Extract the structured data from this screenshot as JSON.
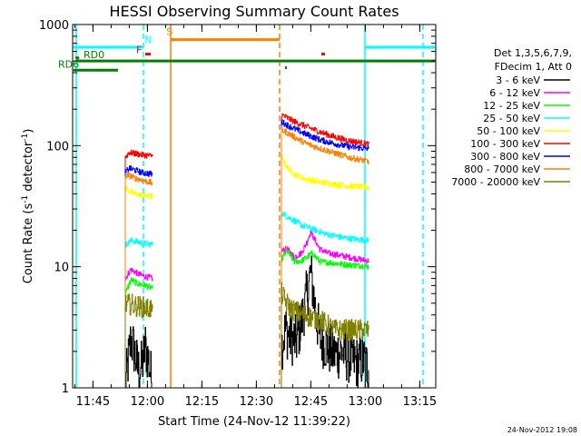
{
  "chart_data": {
    "type": "line",
    "title": "HESSI Observing Summary Count Rates",
    "xlabel": "Start Time (24-Nov-12 11:39:22)",
    "ylabel": "Count Rate (s",
    "ylabel_sup1": "-1",
    "ylabel_mid": " detector",
    "ylabel_sup2": "-1",
    "ylabel_end": ")",
    "x_unit": "minutes since 11:39:22",
    "xlim": [
      0,
      100
    ],
    "ylim": [
      1,
      1000
    ],
    "y_scale": "log",
    "x_ticks": [
      {
        "label": "11:45",
        "min": 5.6
      },
      {
        "label": "12:00",
        "min": 20.6
      },
      {
        "label": "12:15",
        "min": 35.6
      },
      {
        "label": "12:30",
        "min": 50.6
      },
      {
        "label": "12:45",
        "min": 65.6
      },
      {
        "label": "13:00",
        "min": 80.6
      },
      {
        "label": "13:15",
        "min": 95.6
      }
    ],
    "y_ticks": [
      {
        "label": "1",
        "v": 1
      },
      {
        "label": "10",
        "v": 10
      },
      {
        "label": "100",
        "v": 100
      },
      {
        "label": "1000",
        "v": 1000
      }
    ],
    "legend_header": [
      "Det 1,3,5,6,7,9,",
      "FDecim 1, Att 0"
    ],
    "series": [
      {
        "name": "3 - 6 keV",
        "color": "#000000",
        "seg1": [
          [
            14.5,
            1.0
          ],
          [
            15.2,
            1.6
          ],
          [
            16.0,
            2.5
          ],
          [
            17.0,
            2.0
          ],
          [
            18.0,
            1.4
          ],
          [
            19.0,
            1.5
          ],
          [
            20.0,
            2.2
          ],
          [
            21.0,
            1.6
          ],
          [
            22.0,
            1.0
          ]
        ],
        "seg2": [
          [
            57.5,
            2.2
          ],
          [
            58.5,
            3.0
          ],
          [
            60.0,
            2.6
          ],
          [
            61.5,
            2.4
          ],
          [
            63.0,
            3.5
          ],
          [
            64.5,
            6.0
          ],
          [
            65.5,
            9.0
          ],
          [
            66.0,
            7.0
          ],
          [
            67.0,
            4.0
          ],
          [
            68.0,
            2.6
          ],
          [
            70.0,
            2.2
          ],
          [
            72.0,
            1.9
          ],
          [
            74.0,
            2.0
          ],
          [
            76.0,
            1.8
          ],
          [
            78.0,
            1.6
          ],
          [
            80.0,
            1.7
          ],
          [
            81.5,
            1.4
          ]
        ]
      },
      {
        "name": "6 - 12 keV",
        "color": "#ff00ff",
        "seg1": [
          [
            14.5,
            8.0
          ],
          [
            16.0,
            9.5
          ],
          [
            18.0,
            8.7
          ],
          [
            20.0,
            8.3
          ],
          [
            22.0,
            8.0
          ]
        ],
        "seg2": [
          [
            57.5,
            13.5
          ],
          [
            59.0,
            14.0
          ],
          [
            61.0,
            12.0
          ],
          [
            63.0,
            13.0
          ],
          [
            64.5,
            16.0
          ],
          [
            65.5,
            19.5
          ],
          [
            66.5,
            17.0
          ],
          [
            68.0,
            14.0
          ],
          [
            70.0,
            13.0
          ],
          [
            73.0,
            12.5
          ],
          [
            76.0,
            12.0
          ],
          [
            79.0,
            11.5
          ],
          [
            81.5,
            11.2
          ]
        ]
      },
      {
        "name": "12 - 25 keV",
        "color": "#00ff00",
        "seg1": [
          [
            14.5,
            6.0
          ],
          [
            16.0,
            7.8
          ],
          [
            18.0,
            7.2
          ],
          [
            20.0,
            7.0
          ],
          [
            22.0,
            6.6
          ]
        ],
        "seg2": [
          [
            57.5,
            11.5
          ],
          [
            59.0,
            13.5
          ],
          [
            61.0,
            11.0
          ],
          [
            63.0,
            11.2
          ],
          [
            64.5,
            12.0
          ],
          [
            66.0,
            13.0
          ],
          [
            68.0,
            11.0
          ],
          [
            71.0,
            10.8
          ],
          [
            74.0,
            10.5
          ],
          [
            77.0,
            10.3
          ],
          [
            80.0,
            10.2
          ],
          [
            81.5,
            10.0
          ]
        ]
      },
      {
        "name": "25 - 50 keV",
        "color": "#00ffff",
        "seg1": [
          [
            14.5,
            15.0
          ],
          [
            16.0,
            16.5
          ],
          [
            18.0,
            16.0
          ],
          [
            20.0,
            15.5
          ],
          [
            22.0,
            15.2
          ]
        ],
        "seg2": [
          [
            57.5,
            28.0
          ],
          [
            59.0,
            26.0
          ],
          [
            61.0,
            24.0
          ],
          [
            63.0,
            22.0
          ],
          [
            66.0,
            20.5
          ],
          [
            70.0,
            18.5
          ],
          [
            74.0,
            17.5
          ],
          [
            78.0,
            16.8
          ],
          [
            81.5,
            16.5
          ]
        ]
      },
      {
        "name": "50 - 100 keV",
        "color": "#ffff00",
        "seg1": [
          [
            14.5,
            45.0
          ],
          [
            15.5,
            42.0
          ],
          [
            17.0,
            40.0
          ],
          [
            19.0,
            39.0
          ],
          [
            22.0,
            38.0
          ]
        ],
        "seg2": [
          [
            57.5,
            80.0
          ],
          [
            59.0,
            66.0
          ],
          [
            61.0,
            58.0
          ],
          [
            64.0,
            53.0
          ],
          [
            68.0,
            50.0
          ],
          [
            72.0,
            48.0
          ],
          [
            76.0,
            46.5
          ],
          [
            81.5,
            45.0
          ]
        ]
      },
      {
        "name": "100 - 300 keV",
        "color": "#ff0000",
        "seg1": [
          [
            14.5,
            80.0
          ],
          [
            15.5,
            88.0
          ],
          [
            17.0,
            86.0
          ],
          [
            19.0,
            84.0
          ],
          [
            22.0,
            82.0
          ]
        ],
        "seg2": [
          [
            57.5,
            180.0
          ],
          [
            59.0,
            170.0
          ],
          [
            61.0,
            158.0
          ],
          [
            64.0,
            145.0
          ],
          [
            68.0,
            130.0
          ],
          [
            72.0,
            118.0
          ],
          [
            76.0,
            110.0
          ],
          [
            81.5,
            103.0
          ]
        ]
      },
      {
        "name": "300 - 800 keV",
        "color": "#0000ff",
        "seg1": [
          [
            14.5,
            60.0
          ],
          [
            15.5,
            65.0
          ],
          [
            17.0,
            63.0
          ],
          [
            19.0,
            60.0
          ],
          [
            22.0,
            58.0
          ]
        ],
        "seg2": [
          [
            57.5,
            158.0
          ],
          [
            59.0,
            148.0
          ],
          [
            61.0,
            138.0
          ],
          [
            64.0,
            125.0
          ],
          [
            68.0,
            112.0
          ],
          [
            72.0,
            104.0
          ],
          [
            76.0,
            98.0
          ],
          [
            81.5,
            94.0
          ]
        ]
      },
      {
        "name": "800 - 7000 keV",
        "color": "#ff7f00",
        "seg1": [
          [
            14.5,
            56.0
          ],
          [
            15.5,
            57.0
          ],
          [
            17.0,
            54.0
          ],
          [
            19.0,
            52.0
          ],
          [
            22.0,
            49.0
          ]
        ],
        "seg2": [
          [
            57.5,
            135.0
          ],
          [
            59.0,
            128.0
          ],
          [
            61.0,
            118.0
          ],
          [
            64.0,
            105.0
          ],
          [
            68.0,
            95.0
          ],
          [
            72.0,
            87.0
          ],
          [
            76.0,
            80.0
          ],
          [
            81.5,
            74.0
          ]
        ]
      },
      {
        "name": "7000 - 20000 keV",
        "color": "#7f7f00",
        "seg1": [
          [
            14.5,
            4.8
          ],
          [
            16.0,
            4.9
          ],
          [
            18.0,
            4.7
          ],
          [
            20.0,
            4.6
          ],
          [
            22.0,
            4.5
          ]
        ],
        "seg2": [
          [
            57.5,
            6.0
          ],
          [
            58.5,
            5.2
          ],
          [
            60.0,
            4.5
          ],
          [
            62.0,
            4.2
          ],
          [
            64.0,
            4.0
          ],
          [
            66.0,
            3.8
          ],
          [
            69.0,
            3.5
          ],
          [
            72.0,
            3.0
          ],
          [
            76.0,
            3.0
          ],
          [
            81.5,
            3.0
          ]
        ]
      }
    ],
    "annotations": {
      "vertical_lines": [
        {
          "min": 1.0,
          "color": "#00ffff",
          "dashed": false
        },
        {
          "min": 19.5,
          "color": "#00ffff",
          "dashed": true
        },
        {
          "min": 27.0,
          "color": "#ff7f00",
          "dashed": false
        },
        {
          "min": 57.0,
          "color": "#ff7f00",
          "dashed": true
        },
        {
          "min": 80.5,
          "color": "#00ffff",
          "dashed": false
        },
        {
          "min": 96.5,
          "color": "#00ffff",
          "dashed": true
        }
      ],
      "bars": [
        {
          "from": 0.2,
          "to": 19.5,
          "v": 650,
          "color": "#00ffff",
          "width": 3
        },
        {
          "from": 80.5,
          "to": 99.8,
          "v": 650,
          "color": "#00ffff",
          "width": 3
        },
        {
          "from": 27.0,
          "to": 57.0,
          "v": 750,
          "color": "#ff7f00",
          "width": 3
        },
        {
          "from": 1.0,
          "to": 99.8,
          "v": 500,
          "color": "#007f00",
          "width": 3
        },
        {
          "from": 0.2,
          "to": 12.5,
          "v": 420,
          "color": "#007f00",
          "width": 3
        },
        {
          "from": 0.8,
          "to": 1.8,
          "v": 530,
          "color": "#007f00",
          "width": 3
        },
        {
          "from": 20.0,
          "to": 21.5,
          "v": 570,
          "color": "#ff0000",
          "width": 3
        },
        {
          "from": 68.5,
          "to": 69.5,
          "v": 570,
          "color": "#ff0000",
          "width": 3
        },
        {
          "from": 58.5,
          "to": 59.0,
          "v": 440,
          "color": "#007f00",
          "width": 3
        }
      ],
      "labels": [
        {
          "text": "N",
          "min": 19.8,
          "v": 700,
          "color": "#00ffff"
        },
        {
          "text": "S",
          "min": 25.8,
          "v": 820,
          "color": "#ff7f00"
        },
        {
          "text": "F",
          "min": 17.5,
          "v": 580,
          "color": "#ff0000"
        },
        {
          "text": "RD0",
          "min": 3.0,
          "v": 530,
          "color": "#007f00"
        },
        {
          "text": "RD6",
          "min": -4.0,
          "v": 440,
          "color": "#007f00"
        }
      ]
    }
  },
  "footer": {
    "timestamp": "24-Nov-2012 19:08"
  }
}
